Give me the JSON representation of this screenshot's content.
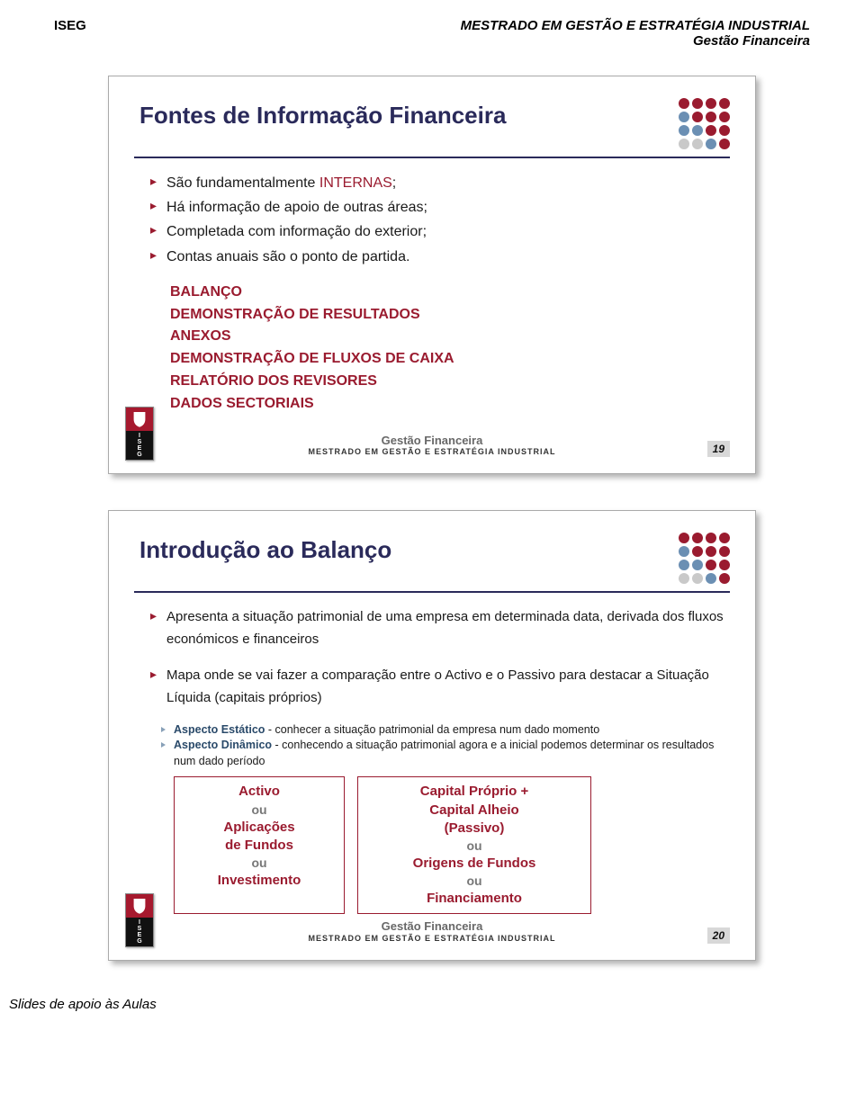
{
  "page_header": {
    "left": "ISEG",
    "right_line1": "MESTRADO EM GESTÃO E ESTRATÉGIA INDUSTRIAL",
    "right_line2": "Gestão Financeira"
  },
  "dot_colors": {
    "rows": [
      [
        "#9a1b2f",
        "#9a1b2f",
        "#9a1b2f",
        "#9a1b2f"
      ],
      [
        "#6b8fb3",
        "#9a1b2f",
        "#9a1b2f",
        "#9a1b2f"
      ],
      [
        "#6b8fb3",
        "#6b8fb3",
        "#9a1b2f",
        "#9a1b2f"
      ],
      [
        "#c9c9c9",
        "#c9c9c9",
        "#6b8fb3",
        "#9a1b2f"
      ]
    ]
  },
  "slide1": {
    "title": "Fontes de Informação Financeira",
    "bullets": [
      {
        "pre": "São fundamentalmente ",
        "accent": "INTERNAS",
        "post": ";"
      },
      {
        "pre": "Há informação de apoio de outras áreas;",
        "accent": "",
        "post": ""
      },
      {
        "pre": "Completada com informação do exterior;",
        "accent": "",
        "post": ""
      },
      {
        "pre": "Contas anuais são o ponto de partida.",
        "accent": "",
        "post": ""
      }
    ],
    "docs": [
      "BALANÇO",
      "DEMONSTRAÇÃO DE RESULTADOS",
      "ANEXOS",
      "DEMONSTRAÇÃO DE FLUXOS DE CAIXA",
      "RELATÓRIO DOS REVISORES",
      "DADOS SECTORIAIS"
    ],
    "footer_gf": "Gestão Financeira",
    "footer_sub": "MESTRADO EM GESTÃO E ESTRATÉGIA INDUSTRIAL",
    "number": "19"
  },
  "slide2": {
    "title": "Introdução ao Balanço",
    "bullet1": "Apresenta a situação patrimonial de uma empresa em determinada data, derivada dos fluxos económicos e financeiros",
    "bullet2": "Mapa onde se vai fazer a comparação entre o Activo e o Passivo para destacar a Situação Líquida (capitais próprios)",
    "sub1_lead": "Aspecto Estático",
    "sub1_rest": " - conhecer a situação patrimonial da empresa num dado momento",
    "sub2_lead": "Aspecto Dinâmico",
    "sub2_rest": " - conhecendo a situação patrimonial agora e a inicial podemos determinar os resultados num dado período",
    "box1": {
      "l1": "Activo",
      "ou1": "ou",
      "l2": "Aplicações",
      "l3": "de Fundos",
      "ou2": "ou",
      "l4": "Investimento"
    },
    "box2": {
      "l1": "Capital Próprio +",
      "l2": "Capital Alheio",
      "l3": "(Passivo)",
      "ou1": "ou",
      "l4": "Origens de Fundos",
      "ou2": "ou",
      "l5": "Financiamento"
    },
    "footer_gf": "Gestão Financeira",
    "footer_sub": "MESTRADO EM GESTÃO E ESTRATÉGIA INDUSTRIAL",
    "number": "20"
  },
  "page_footer": "Slides de apoio às Aulas"
}
